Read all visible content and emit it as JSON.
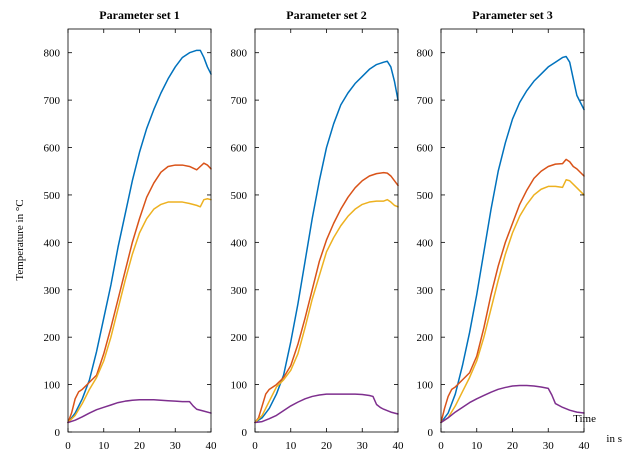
{
  "figure": {
    "ylabel": "Temperature in °C",
    "xlabel_line1": "Time",
    "xlabel_line2": "in s"
  },
  "chart_data": [
    {
      "type": "line",
      "title": "Parameter set 1",
      "xlim": [
        0,
        40
      ],
      "ylim": [
        0,
        850
      ],
      "xticks": [
        0,
        10,
        20,
        30,
        40
      ],
      "yticks": [
        0,
        100,
        200,
        300,
        400,
        500,
        600,
        700,
        800
      ],
      "grid": false,
      "series": [
        {
          "color": "#0072BD",
          "x": [
            0,
            2,
            4,
            6,
            8,
            10,
            12,
            14,
            16,
            18,
            20,
            22,
            24,
            26,
            28,
            30,
            32,
            34,
            36,
            37,
            38,
            39,
            40
          ],
          "y": [
            20,
            40,
            70,
            110,
            170,
            240,
            310,
            390,
            460,
            530,
            590,
            640,
            680,
            715,
            745,
            770,
            790,
            800,
            805,
            805,
            790,
            770,
            755
          ]
        },
        {
          "color": "#D95319",
          "x": [
            0,
            1,
            2,
            3,
            4,
            6,
            8,
            10,
            12,
            14,
            16,
            18,
            20,
            22,
            24,
            26,
            28,
            30,
            32,
            34,
            36,
            37,
            38,
            39,
            40
          ],
          "y": [
            20,
            40,
            70,
            85,
            90,
            105,
            120,
            165,
            220,
            280,
            340,
            400,
            450,
            495,
            525,
            548,
            560,
            563,
            563,
            560,
            553,
            560,
            567,
            563,
            555
          ]
        },
        {
          "color": "#EDB120",
          "x": [
            0,
            2,
            4,
            6,
            8,
            10,
            12,
            14,
            16,
            18,
            20,
            22,
            24,
            26,
            28,
            30,
            32,
            34,
            36,
            37,
            38,
            39,
            40
          ],
          "y": [
            20,
            35,
            60,
            90,
            115,
            150,
            200,
            260,
            320,
            375,
            420,
            450,
            470,
            480,
            485,
            485,
            485,
            482,
            478,
            475,
            490,
            492,
            490
          ]
        },
        {
          "color": "#7E2F8E",
          "x": [
            0,
            2,
            4,
            6,
            8,
            10,
            12,
            14,
            16,
            18,
            20,
            22,
            24,
            26,
            28,
            30,
            32,
            34,
            35,
            36,
            38,
            40
          ],
          "y": [
            20,
            25,
            32,
            40,
            47,
            52,
            57,
            62,
            65,
            67,
            68,
            68,
            68,
            67,
            66,
            65,
            64,
            64,
            55,
            48,
            44,
            40
          ]
        }
      ]
    },
    {
      "type": "line",
      "title": "Parameter set 2",
      "xlim": [
        0,
        40
      ],
      "ylim": [
        0,
        850
      ],
      "xticks": [
        0,
        10,
        20,
        30,
        40
      ],
      "yticks": [
        0,
        100,
        200,
        300,
        400,
        500,
        600,
        700,
        800
      ],
      "grid": false,
      "series": [
        {
          "color": "#0072BD",
          "x": [
            0,
            2,
            4,
            6,
            8,
            10,
            12,
            14,
            16,
            18,
            20,
            22,
            24,
            26,
            28,
            30,
            32,
            34,
            36,
            37,
            38,
            39,
            40
          ],
          "y": [
            20,
            30,
            50,
            80,
            120,
            190,
            270,
            360,
            450,
            530,
            600,
            650,
            690,
            715,
            735,
            750,
            765,
            775,
            780,
            782,
            770,
            740,
            700
          ]
        },
        {
          "color": "#D95319",
          "x": [
            0,
            1,
            2,
            3,
            4,
            6,
            8,
            10,
            12,
            14,
            16,
            18,
            20,
            22,
            24,
            26,
            28,
            30,
            32,
            34,
            36,
            37,
            38,
            39,
            40
          ],
          "y": [
            20,
            30,
            55,
            80,
            90,
            100,
            115,
            140,
            185,
            240,
            300,
            360,
            405,
            440,
            470,
            495,
            515,
            530,
            540,
            545,
            547,
            546,
            540,
            530,
            520
          ]
        },
        {
          "color": "#EDB120",
          "x": [
            0,
            2,
            4,
            6,
            8,
            10,
            12,
            14,
            16,
            18,
            20,
            22,
            24,
            26,
            28,
            30,
            32,
            34,
            36,
            37,
            38,
            39,
            40
          ],
          "y": [
            20,
            35,
            65,
            95,
            110,
            130,
            165,
            220,
            280,
            330,
            380,
            410,
            435,
            455,
            470,
            480,
            485,
            487,
            487,
            490,
            485,
            478,
            475
          ]
        },
        {
          "color": "#7E2F8E",
          "x": [
            0,
            2,
            4,
            6,
            8,
            10,
            12,
            14,
            16,
            18,
            20,
            22,
            24,
            26,
            28,
            30,
            32,
            33,
            34,
            35,
            36,
            38,
            40
          ],
          "y": [
            20,
            22,
            28,
            35,
            45,
            55,
            63,
            70,
            75,
            78,
            80,
            80,
            80,
            80,
            80,
            79,
            77,
            75,
            58,
            52,
            48,
            42,
            38
          ]
        }
      ]
    },
    {
      "type": "line",
      "title": "Parameter set 3",
      "xlim": [
        0,
        40
      ],
      "ylim": [
        0,
        850
      ],
      "xticks": [
        0,
        10,
        20,
        30,
        40
      ],
      "yticks": [
        0,
        100,
        200,
        300,
        400,
        500,
        600,
        700,
        800
      ],
      "grid": false,
      "series": [
        {
          "color": "#0072BD",
          "x": [
            0,
            2,
            4,
            6,
            8,
            10,
            12,
            14,
            16,
            18,
            20,
            22,
            24,
            26,
            28,
            30,
            32,
            34,
            35,
            36,
            37,
            38,
            39,
            40
          ],
          "y": [
            20,
            40,
            80,
            140,
            210,
            290,
            380,
            470,
            550,
            610,
            660,
            695,
            720,
            740,
            755,
            770,
            780,
            790,
            792,
            780,
            745,
            710,
            695,
            680
          ]
        },
        {
          "color": "#D95319",
          "x": [
            0,
            1,
            2,
            3,
            4,
            6,
            8,
            10,
            12,
            14,
            16,
            18,
            20,
            22,
            24,
            26,
            28,
            30,
            32,
            34,
            35,
            36,
            37,
            38,
            40
          ],
          "y": [
            20,
            50,
            75,
            90,
            95,
            110,
            125,
            160,
            220,
            290,
            350,
            400,
            440,
            480,
            510,
            535,
            550,
            560,
            565,
            566,
            575,
            570,
            560,
            555,
            540
          ]
        },
        {
          "color": "#EDB120",
          "x": [
            0,
            2,
            4,
            6,
            8,
            10,
            12,
            14,
            16,
            18,
            20,
            22,
            24,
            26,
            28,
            30,
            32,
            34,
            35,
            36,
            38,
            40
          ],
          "y": [
            20,
            30,
            55,
            85,
            115,
            150,
            200,
            260,
            320,
            375,
            420,
            455,
            480,
            500,
            512,
            518,
            518,
            516,
            532,
            530,
            515,
            500
          ]
        },
        {
          "color": "#7E2F8E",
          "x": [
            0,
            2,
            4,
            6,
            8,
            10,
            12,
            14,
            16,
            18,
            20,
            22,
            24,
            26,
            28,
            30,
            31,
            32,
            34,
            36,
            38,
            40
          ],
          "y": [
            20,
            30,
            42,
            52,
            62,
            70,
            77,
            84,
            90,
            94,
            97,
            98,
            98,
            97,
            95,
            92,
            78,
            60,
            52,
            46,
            42,
            40
          ]
        }
      ]
    }
  ]
}
